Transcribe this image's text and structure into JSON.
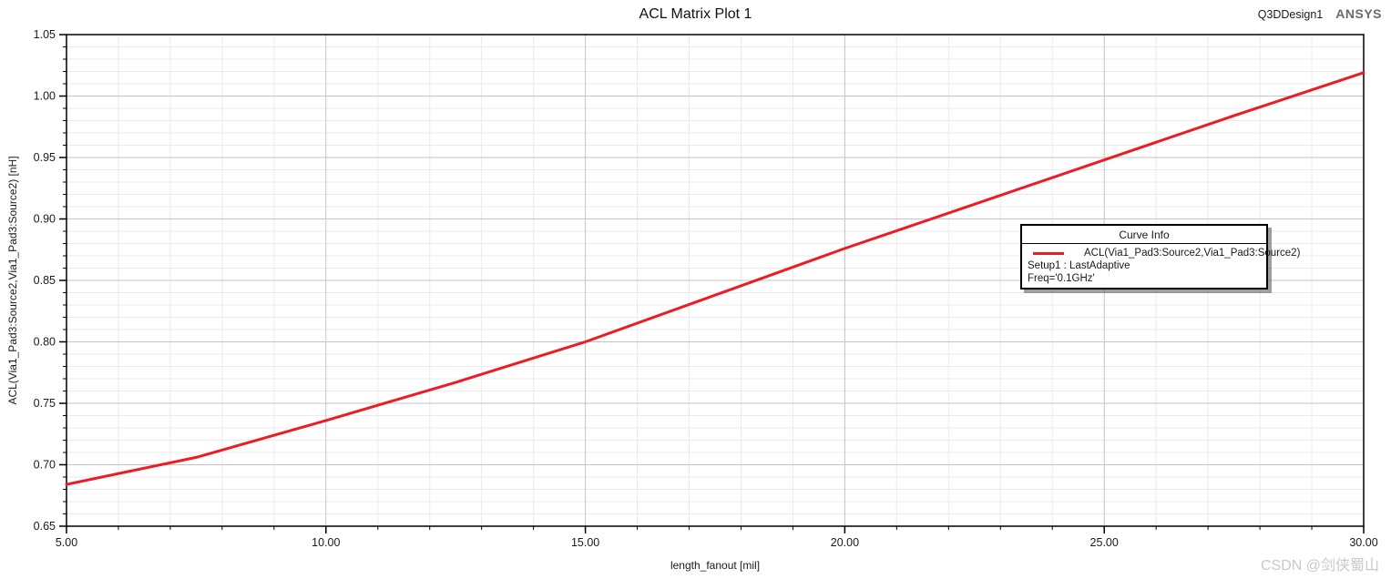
{
  "header": {
    "title": "ACL Matrix Plot 1",
    "design_name": "Q3DDesign1",
    "brand": "ANSYS"
  },
  "chart_data": {
    "type": "line",
    "title": "ACL Matrix Plot 1",
    "xlabel": "length_fanout [mil]",
    "ylabel": "ACL(Via1_Pad3:Source2,Via1_Pad3:Source2) [nH]",
    "xlim": [
      5,
      30
    ],
    "ylim": [
      0.65,
      1.05
    ],
    "x_major_step": 5,
    "x_minor_step": 1,
    "y_major_step": 0.05,
    "y_minor_step": 0.01,
    "x_tick_labels": [
      "5.00",
      "10.00",
      "15.00",
      "20.00",
      "25.00",
      "30.00"
    ],
    "y_tick_labels": [
      "0.65",
      "0.70",
      "0.75",
      "0.80",
      "0.85",
      "0.90",
      "0.95",
      "1.00",
      "1.05"
    ],
    "grid": true,
    "series": [
      {
        "name": "ACL(Via1_Pad3:Source2,Via1_Pad3:Source2)",
        "color": "#ec1c24",
        "x": [
          5,
          7.5,
          10,
          12.5,
          15,
          17.5,
          20,
          22.5,
          25,
          27.5,
          30
        ],
        "y": [
          0.684,
          0.706,
          0.736,
          0.767,
          0.8,
          0.838,
          0.876,
          0.912,
          0.948,
          0.984,
          1.019
        ]
      }
    ],
    "legend": {
      "title": "Curve Info",
      "position": "inside-right",
      "entries": [
        {
          "label": "ACL(Via1_Pad3:Source2,Via1_Pad3:Source2)",
          "color": "#ec1c24"
        }
      ],
      "extra_lines": [
        "Setup1 : LastAdaptive",
        "Freq='0.1GHz'"
      ]
    }
  },
  "watermark": "CSDN @剑侠蜀山",
  "colors": {
    "curve": "#ec1c24",
    "grid_minor": "#ebebeb",
    "grid_major": "#c4c4c4",
    "axis": "#000000",
    "text": "#1a1a1a",
    "brand_gray": "#6b6b6b",
    "watermark": "#c9c9c9"
  }
}
